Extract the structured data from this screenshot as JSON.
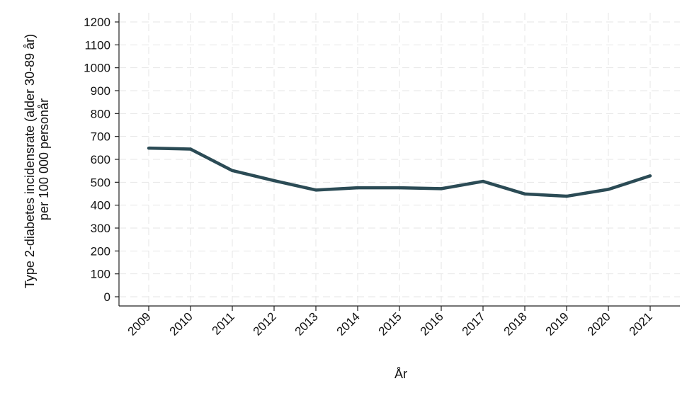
{
  "chart_data": {
    "type": "line",
    "title": "",
    "xlabel": "År",
    "ylabel_lines": [
      "Type 2-diabetes incidensrate (alder 30-89 år)",
      "per 100 000 personår"
    ],
    "x": [
      "2009",
      "2010",
      "2011",
      "2012",
      "2013",
      "2014",
      "2015",
      "2016",
      "2017",
      "2018",
      "2019",
      "2020",
      "2021"
    ],
    "series": [
      {
        "values": [
          649,
          645,
          551,
          507,
          466,
          476,
          476,
          472,
          504,
          449,
          439,
          469,
          528
        ],
        "color": "#2b4b55"
      }
    ],
    "ylim": [
      0,
      1200
    ],
    "yticks": [
      0,
      100,
      200,
      300,
      400,
      500,
      600,
      700,
      800,
      900,
      1000,
      1100,
      1200
    ],
    "grid": true,
    "legend": "none"
  }
}
